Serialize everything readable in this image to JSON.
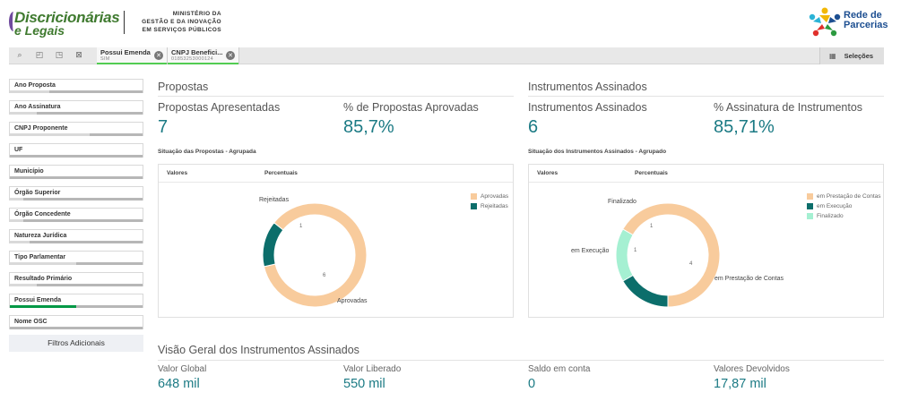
{
  "header": {
    "brand_line1": "Discricionárias",
    "brand_line2": "e Legais",
    "ministry_line1": "MINISTÉRIO DA",
    "ministry_line2": "GESTÃO E DA INOVAÇÃO",
    "ministry_line3": "EM SERVIÇOS PÚBLICOS",
    "partner_line1": "Rede de",
    "partner_line2": "Parcerias"
  },
  "toolbar": {
    "icons": [
      "search-icon",
      "step-back-icon",
      "step-forward-icon",
      "clear-selections-icon"
    ],
    "selections": [
      {
        "name": "Possui Emenda",
        "value": "SIM"
      },
      {
        "name": "CNPJ Benefici...",
        "value": "01853253000124"
      }
    ],
    "selections_button": "Seleções"
  },
  "sidebar": {
    "filters": [
      {
        "label": "Ano Proposta",
        "fill": 0.3,
        "selected": false
      },
      {
        "label": "Ano Assinatura",
        "fill": 0.2,
        "selected": false
      },
      {
        "label": "CNPJ Proponente",
        "fill": 0.6,
        "selected": false
      },
      {
        "label": "UF",
        "fill": 0.0,
        "selected": false
      },
      {
        "label": "Município",
        "fill": 0.0,
        "selected": false
      },
      {
        "label": "Órgão Superior",
        "fill": 0.1,
        "selected": false
      },
      {
        "label": "Órgão Concedente",
        "fill": 0.1,
        "selected": false
      },
      {
        "label": "Natureza Jurídica",
        "fill": 0.15,
        "selected": false
      },
      {
        "label": "Tipo Parlamentar",
        "fill": 0.5,
        "selected": false
      },
      {
        "label": "Resultado Primário",
        "fill": 0.2,
        "selected": false
      },
      {
        "label": "Possui Emenda",
        "fill": 0.5,
        "selected": true
      },
      {
        "label": "Nome OSC",
        "fill": 0.0,
        "selected": false
      }
    ],
    "more_filters": "Filtros Adicionais"
  },
  "propostas": {
    "title": "Propostas",
    "kpi1_label": "Propostas Apresentadas",
    "kpi1_value": "7",
    "kpi2_label": "% de Propostas Aprovadas",
    "kpi2_value": "85,7%",
    "chart_title": "Situação das Propostas - Agrupada",
    "tab1": "Valores",
    "tab2": "Percentuais"
  },
  "instrumentos": {
    "title": "Instrumentos Assinados",
    "kpi1_label": "Instrumentos Assinados",
    "kpi1_value": "6",
    "kpi2_label": "% Assinatura de Instrumentos",
    "kpi2_value": "85,71%",
    "chart_title": "Situação dos Instrumentos Assinados - Agrupado",
    "tab1": "Valores",
    "tab2": "Percentuais"
  },
  "overview": {
    "title": "Visão Geral dos Instrumentos Assinados",
    "items": [
      {
        "label": "Valor Global",
        "value": "648 mil"
      },
      {
        "label": "Valor Liberado",
        "value": "550 mil"
      },
      {
        "label": "Saldo em conta",
        "value": "0"
      },
      {
        "label": "Valores Devolvidos",
        "value": "17,87 mil"
      }
    ]
  },
  "chart_data": [
    {
      "type": "pie",
      "title": "Situação das Propostas - Agrupada",
      "categories": [
        "Aprovadas",
        "Rejeitadas"
      ],
      "values": [
        6,
        1
      ],
      "colors": [
        "#f8cb9c",
        "#0c6e6b"
      ],
      "legend": "top-right"
    },
    {
      "type": "pie",
      "title": "Situação dos Instrumentos Assinados - Agrupado",
      "categories": [
        "em Prestação de Contas",
        "em Execução",
        "Finalizado"
      ],
      "values": [
        4,
        1,
        1
      ],
      "colors": [
        "#f8cb9c",
        "#0c6e6b",
        "#a5f0d2"
      ],
      "legend": "top-right"
    }
  ]
}
